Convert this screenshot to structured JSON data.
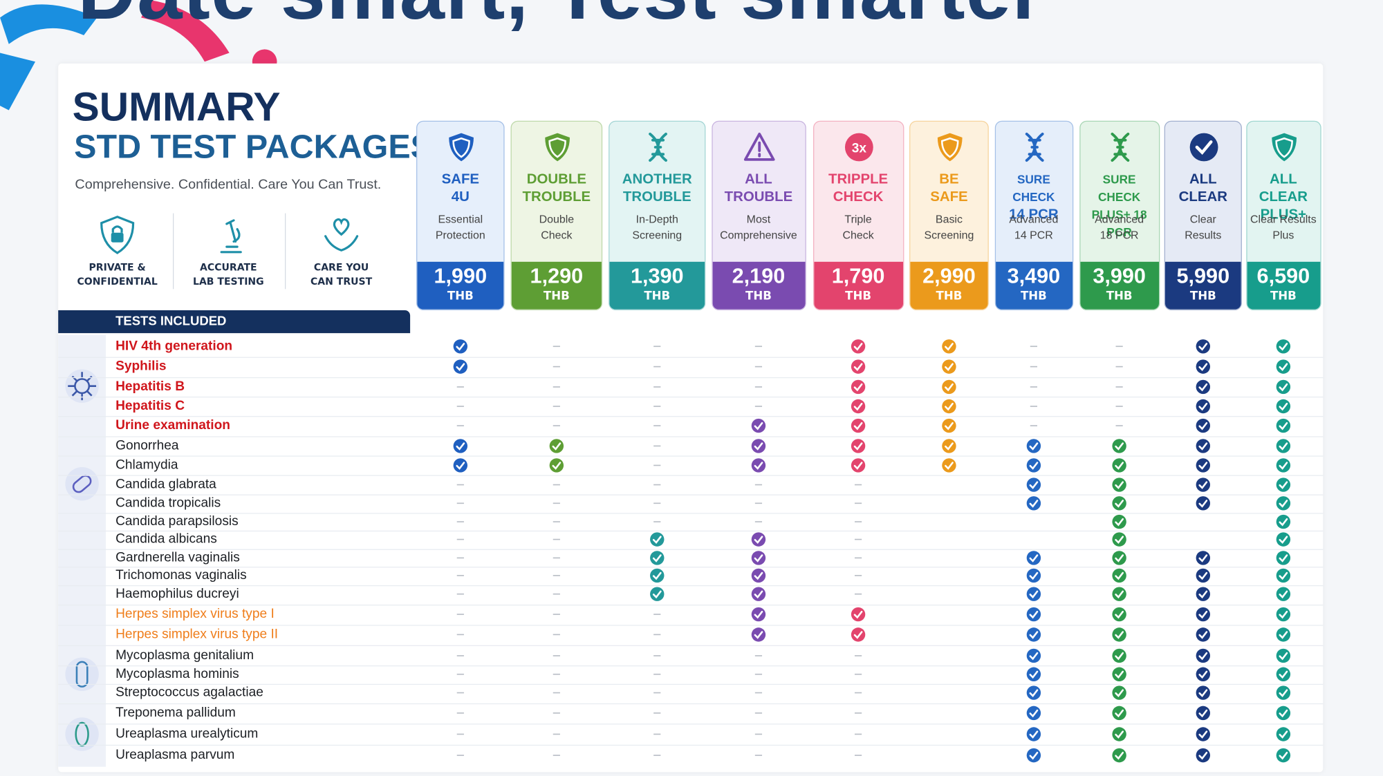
{
  "hero_title": "Date smart, Test smarter",
  "summary": {
    "title": "SUMMARY",
    "subtitle": "STD TEST PACKAGES",
    "tagline": "Comprehensive. Confidential. Care You Can Trust."
  },
  "features": [
    {
      "label": [
        "PRIVATE &",
        "CONFIDENTIAL"
      ]
    },
    {
      "label": [
        "ACCURATE",
        "LAB TESTING"
      ]
    },
    {
      "label": [
        "CARE YOU",
        "CAN TRUST"
      ]
    }
  ],
  "packages": [
    {
      "name": [
        "SAFE",
        "4U"
      ],
      "description": [
        "Essential",
        "Protection"
      ],
      "price": "1,990",
      "currency": "THB",
      "color": "#1f5fc0",
      "tint": "#e6effb"
    },
    {
      "name": [
        "DOUBLE",
        "TROUBLE"
      ],
      "description": [
        "Double",
        "Check"
      ],
      "price": "1,290",
      "currency": "THB",
      "color": "#5e9e34",
      "tint": "#eef5e4"
    },
    {
      "name": [
        "ANOTHER",
        "TROUBLE"
      ],
      "description": [
        "In-Depth",
        "Screening"
      ],
      "price": "1,390",
      "currency": "THB",
      "color": "#23999a",
      "tint": "#e3f4f3"
    },
    {
      "name": [
        "ALL",
        "TROUBLE"
      ],
      "description": [
        "Most",
        "Comprehensive"
      ],
      "price": "2,190",
      "currency": "THB",
      "color": "#7a4bb0",
      "tint": "#efe8f7"
    },
    {
      "name": [
        "TRIPPLE",
        "CHECK"
      ],
      "description": [
        "Triple",
        "Check"
      ],
      "price": "1,790",
      "currency": "THB",
      "color": "#e3446d",
      "tint": "#fbe7ec",
      "badge": "3x"
    },
    {
      "name": [
        "BE",
        "SAFE"
      ],
      "description": [
        "Basic",
        "Screening"
      ],
      "price": "2,990",
      "currency": "THB",
      "color": "#eb9a1c",
      "tint": "#fdf1dd"
    },
    {
      "name": [
        "SURE CHECK",
        "14 PCR"
      ],
      "description": [
        "Advanced",
        "14 PCR"
      ],
      "price": "3,490",
      "currency": "THB",
      "color": "#2467c2",
      "tint": "#e5eefa"
    },
    {
      "name": [
        "SURE CHECK",
        "PLUS+ 18 PCR"
      ],
      "description": [
        "Advanced",
        "18 PCR"
      ],
      "price": "3,990",
      "currency": "THB",
      "color": "#2e9a4c",
      "tint": "#e5f4e8"
    },
    {
      "name": [
        "ALL",
        "CLEAR"
      ],
      "description": [
        "Clear",
        "Results"
      ],
      "price": "5,990",
      "currency": "THB",
      "color": "#1b3a80",
      "tint": "#e5eaf5"
    },
    {
      "name": [
        "ALL CLEAR",
        "PLUS+"
      ],
      "description": [
        "Clear Results",
        "Plus"
      ],
      "price": "6,590",
      "currency": "THB",
      "color": "#179d8c",
      "tint": "#e2f4f1"
    }
  ],
  "table": {
    "header": "TESTS INCLUDED",
    "rows": [
      {
        "name": "HIV 4th generation",
        "color": "#d0161c",
        "included": [
          true,
          false,
          false,
          false,
          true,
          true,
          false,
          false,
          true,
          true
        ]
      },
      {
        "name": "Syphilis",
        "color": "#d0161c",
        "included": [
          true,
          false,
          false,
          false,
          true,
          true,
          false,
          false,
          true,
          true
        ]
      },
      {
        "name": "Hepatitis B",
        "color": "#d0161c",
        "included": [
          false,
          false,
          false,
          false,
          true,
          true,
          false,
          false,
          true,
          true
        ]
      },
      {
        "name": "Hepatitis C",
        "color": "#d0161c",
        "included": [
          false,
          false,
          false,
          false,
          true,
          true,
          false,
          false,
          true,
          true
        ]
      },
      {
        "name": "Urine examination",
        "color": "#d0161c",
        "included": [
          false,
          false,
          false,
          true,
          true,
          true,
          false,
          false,
          true,
          true
        ]
      },
      {
        "name": "Gonorrhea",
        "color": "#1c1f24",
        "included": [
          true,
          true,
          false,
          true,
          true,
          true,
          true,
          true,
          true,
          true
        ]
      },
      {
        "name": "Chlamydia",
        "color": "#1c1f24",
        "included": [
          true,
          true,
          false,
          true,
          true,
          true,
          true,
          true,
          true,
          true
        ]
      },
      {
        "name": "Candida glabrata",
        "color": "#1c1f24",
        "included": [
          false,
          false,
          false,
          false,
          false,
          null,
          true,
          true,
          true,
          true
        ]
      },
      {
        "name": "Candida tropicalis",
        "color": "#1c1f24",
        "included": [
          false,
          false,
          false,
          false,
          false,
          null,
          true,
          true,
          true,
          true
        ]
      },
      {
        "name": "Candida parapsilosis",
        "color": "#1c1f24",
        "included": [
          false,
          false,
          false,
          false,
          false,
          null,
          null,
          true,
          null,
          true
        ]
      },
      {
        "name": "Candida albicans",
        "color": "#1c1f24",
        "included": [
          false,
          false,
          true,
          true,
          false,
          null,
          null,
          true,
          null,
          true
        ]
      },
      {
        "name": "Gardnerella vaginalis",
        "color": "#1c1f24",
        "included": [
          false,
          false,
          true,
          true,
          false,
          null,
          true,
          true,
          true,
          true
        ]
      },
      {
        "name": "Trichomonas vaginalis",
        "color": "#1c1f24",
        "included": [
          false,
          false,
          true,
          true,
          false,
          null,
          true,
          true,
          true,
          true
        ]
      },
      {
        "name": "Haemophilus ducreyi",
        "color": "#1c1f24",
        "included": [
          false,
          false,
          true,
          true,
          false,
          null,
          true,
          true,
          true,
          true
        ]
      },
      {
        "name": "Herpes simplex virus type I",
        "color": "#ef7d1a",
        "included": [
          false,
          false,
          false,
          true,
          true,
          null,
          true,
          true,
          true,
          true
        ]
      },
      {
        "name": "Herpes simplex virus type II",
        "color": "#ef7d1a",
        "included": [
          false,
          false,
          false,
          true,
          true,
          null,
          true,
          true,
          true,
          true
        ]
      },
      {
        "name": "Mycoplasma genitalium",
        "color": "#1c1f24",
        "included": [
          false,
          false,
          false,
          false,
          false,
          null,
          true,
          true,
          true,
          true
        ]
      },
      {
        "name": "Mycoplasma hominis",
        "color": "#1c1f24",
        "included": [
          false,
          false,
          false,
          false,
          false,
          null,
          true,
          true,
          true,
          true
        ]
      },
      {
        "name": "Streptococcus agalactiae",
        "color": "#1c1f24",
        "included": [
          false,
          false,
          false,
          false,
          false,
          null,
          true,
          true,
          true,
          true
        ]
      },
      {
        "name": "Treponema pallidum",
        "color": "#1c1f24",
        "included": [
          false,
          false,
          false,
          false,
          false,
          null,
          true,
          true,
          true,
          true
        ]
      },
      {
        "name": "Ureaplasma urealyticum",
        "color": "#1c1f24",
        "included": [
          false,
          false,
          false,
          false,
          false,
          null,
          true,
          true,
          true,
          true
        ]
      },
      {
        "name": "Ureaplasma parvum",
        "color": "#1c1f24",
        "included": [
          false,
          false,
          false,
          false,
          false,
          null,
          true,
          true,
          true,
          true
        ]
      }
    ]
  }
}
